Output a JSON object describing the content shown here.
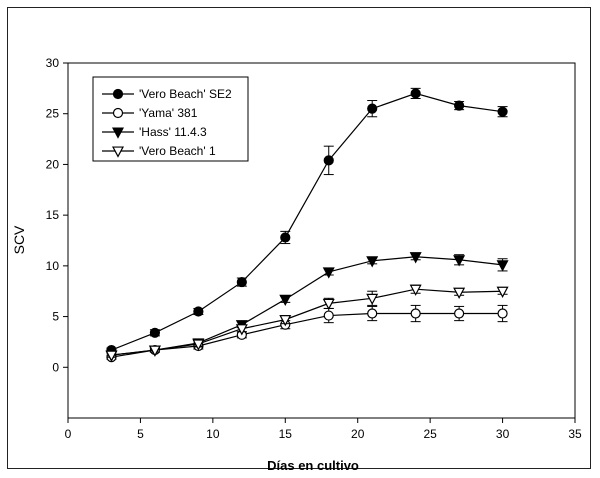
{
  "chart_data": {
    "type": "line",
    "title": "",
    "xlabel": "Días en cultivo",
    "ylabel": "SCV",
    "xlim": [
      0,
      35
    ],
    "ylim": [
      -5,
      30
    ],
    "xticks": [
      0,
      5,
      10,
      15,
      20,
      25,
      30,
      35
    ],
    "yticks": [
      0,
      5,
      10,
      15,
      20,
      25,
      30
    ],
    "grid": false,
    "legend_position": "top-left",
    "series": [
      {
        "name": "'Vero Beach' SE2",
        "marker": "filled-circle",
        "x": [
          3,
          6,
          9,
          12,
          15,
          18,
          21,
          24,
          27,
          30
        ],
        "y": [
          1.7,
          3.4,
          5.5,
          8.4,
          12.8,
          20.4,
          25.5,
          27.0,
          25.8,
          25.2
        ],
        "err": [
          0.2,
          0.3,
          0.3,
          0.4,
          0.6,
          1.4,
          0.8,
          0.5,
          0.4,
          0.5
        ]
      },
      {
        "name": "'Yama' 381",
        "marker": "open-circle",
        "x": [
          3,
          6,
          9,
          12,
          15,
          18,
          21,
          24,
          27,
          30
        ],
        "y": [
          1.0,
          1.7,
          2.1,
          3.2,
          4.2,
          5.1,
          5.3,
          5.3,
          5.3,
          5.3
        ],
        "err": [
          0.2,
          0.2,
          0.3,
          0.3,
          0.4,
          0.7,
          0.7,
          0.8,
          0.7,
          0.8
        ]
      },
      {
        "name": "'Hass' 11.4.3",
        "marker": "filled-triangle-down",
        "x": [
          3,
          6,
          9,
          12,
          15,
          18,
          21,
          24,
          27,
          30
        ],
        "y": [
          1.2,
          1.7,
          2.4,
          4.2,
          6.7,
          9.4,
          10.5,
          10.9,
          10.6,
          10.1
        ],
        "err": [
          0.2,
          0.2,
          0.3,
          0.3,
          0.3,
          0.3,
          0.3,
          0.3,
          0.5,
          0.6
        ]
      },
      {
        "name": "'Vero Beach' 1",
        "marker": "open-triangle-down",
        "x": [
          3,
          6,
          9,
          12,
          15,
          18,
          21,
          24,
          27,
          30
        ],
        "y": [
          1.2,
          1.7,
          2.3,
          3.8,
          4.7,
          6.3,
          6.8,
          7.7,
          7.4,
          7.5
        ],
        "err": [
          0.2,
          0.2,
          0.3,
          0.3,
          0.4,
          0.5,
          0.7,
          0.4,
          0.3,
          0.3
        ]
      }
    ],
    "colors": {
      "line": "#000000",
      "marker_fill": "#000000",
      "marker_open_fill": "#ffffff"
    }
  }
}
